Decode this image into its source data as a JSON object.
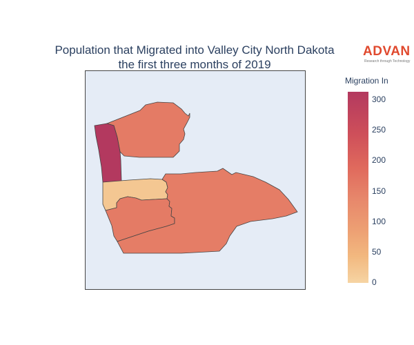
{
  "title": {
    "line1": "Population that Migrated into Valley City North Dakota",
    "line2": "the first three months of 2019"
  },
  "logo": {
    "name": "ADVAN",
    "tagline": "Research through Technology",
    "color": "#e0492e"
  },
  "colorbar": {
    "title": "Migration In",
    "ticks": [
      "300",
      "250",
      "200",
      "150",
      "100",
      "50",
      "0"
    ],
    "range": [
      0,
      315
    ],
    "colors": [
      "#f6d4a3",
      "#f2b87f",
      "#ed9f73",
      "#e7876b",
      "#e06a5d",
      "#ce4f5a",
      "#b3395f"
    ]
  },
  "map": {
    "background_color": "#e5ecf6",
    "regions": [
      {
        "id": "north-tract",
        "value": 180
      },
      {
        "id": "west-strip-tract",
        "value": 315
      },
      {
        "id": "center-small-tract",
        "value": 25
      },
      {
        "id": "south-central-tract",
        "value": 180
      },
      {
        "id": "southeast-tract",
        "value": 175
      }
    ]
  }
}
